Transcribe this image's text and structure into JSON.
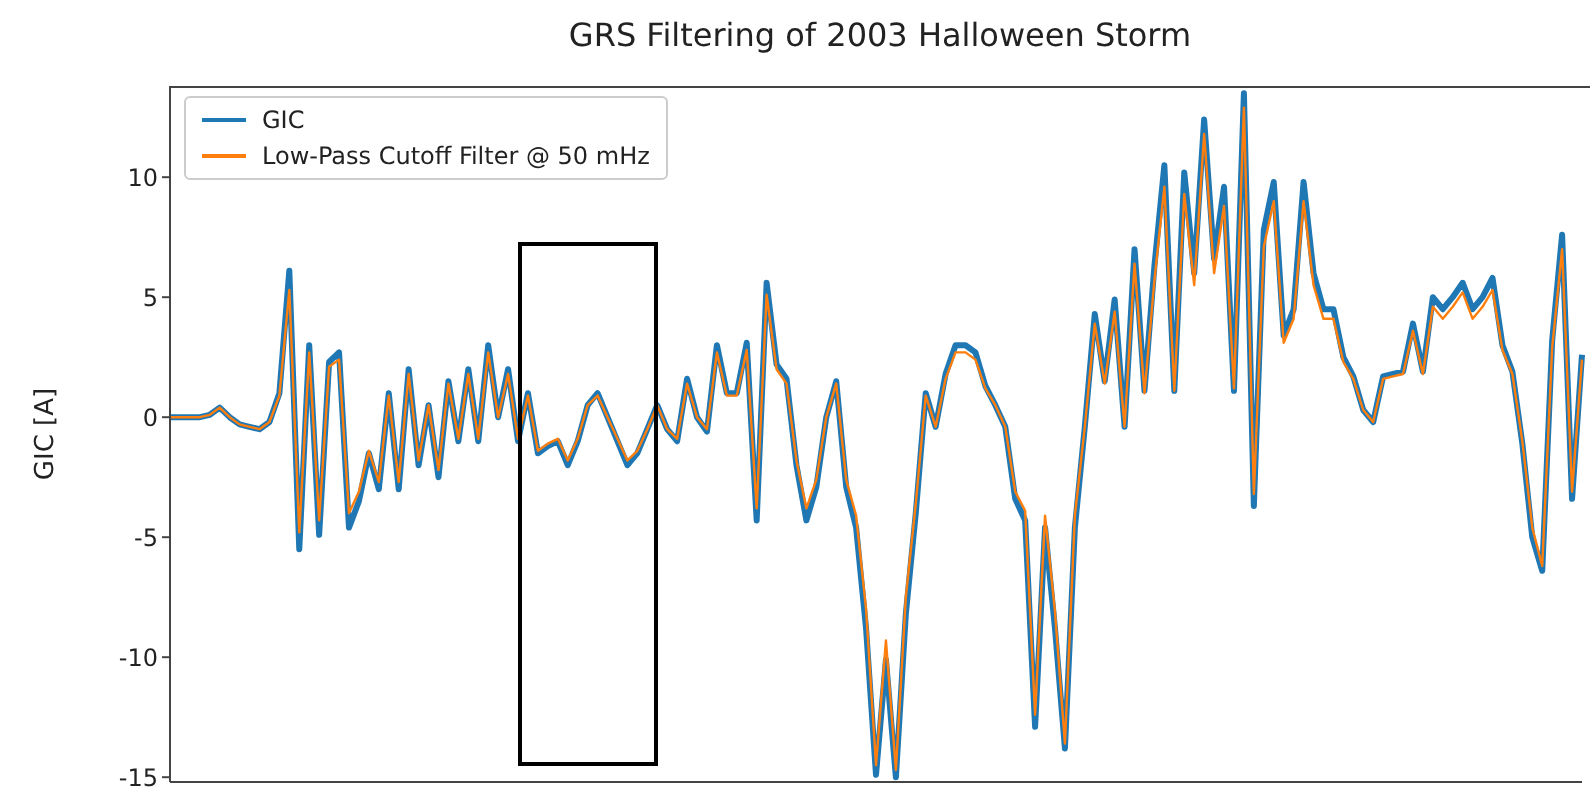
{
  "chart_data": {
    "type": "line",
    "title": "GRS Filtering of 2003 Halloween Storm",
    "ylabel": "GIC [A]",
    "categories": [
      null,
      null,
      null,
      null,
      null,
      null,
      null,
      null,
      null,
      null,
      null,
      null,
      null,
      null,
      null,
      null,
      null,
      null,
      null,
      null,
      null,
      null,
      null,
      null,
      null,
      null,
      null,
      null,
      null,
      null,
      null,
      null,
      null,
      null,
      null,
      null,
      null,
      null,
      null,
      null,
      null,
      null,
      null,
      null,
      null,
      null,
      null,
      null,
      null,
      null,
      null,
      null,
      null,
      null,
      null,
      null,
      null,
      null,
      null,
      null,
      null,
      null,
      null,
      null,
      null,
      null,
      null,
      null,
      null,
      null,
      null,
      null,
      null,
      null,
      null,
      null,
      null,
      null,
      null,
      null,
      null,
      null,
      null,
      null,
      null,
      null,
      null,
      null,
      null,
      null,
      null,
      null,
      null,
      null,
      null,
      null,
      null,
      null,
      null,
      null,
      null,
      null,
      null,
      null,
      null,
      null,
      null,
      null,
      null,
      null,
      null,
      null,
      null,
      null,
      null,
      null,
      null,
      null,
      null,
      null,
      null,
      null,
      null,
      null,
      null,
      null,
      null,
      null,
      null,
      null,
      null,
      null,
      null,
      null,
      null,
      null,
      null,
      null,
      null,
      null,
      null,
      null,
      null
    ],
    "series": [
      {
        "name": "GIC",
        "color": "#1f77b4",
        "values": [
          0,
          0,
          0,
          0,
          0.1,
          0.4,
          0,
          -0.3,
          -0.4,
          -0.5,
          -0.2,
          1,
          6.1,
          -5.5,
          3,
          -4.9,
          2.3,
          2.7,
          -4.6,
          -3.5,
          -1.5,
          -3,
          1,
          -3,
          2,
          -2,
          0.5,
          -2.5,
          1.5,
          -1,
          2,
          -1,
          3,
          0,
          2,
          -1,
          1,
          -1.5,
          -1.2,
          -1,
          -2,
          -1,
          0.5,
          1,
          0,
          -1,
          -2,
          -1.5,
          -0.5,
          0.5,
          -0.5,
          -1,
          1.6,
          0,
          -0.6,
          3,
          1,
          1,
          3.1,
          -4.3,
          5.6,
          2.2,
          1.6,
          -2,
          -4.3,
          -2.9,
          0,
          1.5,
          -2.9,
          -4.6,
          -8.8,
          -14.9,
          -10.1,
          -15,
          -8.2,
          -4,
          1,
          -0.4,
          1.8,
          3,
          3,
          2.7,
          1.3,
          0.5,
          -0.4,
          -3.4,
          -4.3,
          -12.9,
          -4.6,
          -8.8,
          -13.8,
          -4.6,
          -0.4,
          4.3,
          1.5,
          4.9,
          -0.4,
          7,
          1.1,
          6.3,
          10.5,
          1.1,
          10.2,
          6,
          12.4,
          6.6,
          9.6,
          1.1,
          13.5,
          -3.7,
          7.8,
          9.8,
          3.4,
          4.5,
          9.8,
          6,
          4.5,
          4.5,
          2.5,
          1.7,
          0.3,
          -0.2,
          1.7,
          1.8,
          1.9,
          3.9,
          1.9,
          5,
          4.5,
          5,
          5.6,
          4.5,
          5,
          5.8,
          3,
          1.9,
          -1.1,
          -5,
          -6.4,
          3.2,
          7.6,
          -3.4,
          2.6
        ]
      },
      {
        "name": "Low-Pass Cutoff Filter @ 50 mHz",
        "color": "#ff7f0e",
        "values": [
          0,
          0,
          0,
          0,
          0.1,
          0.4,
          0,
          -0.3,
          -0.4,
          -0.5,
          -0.2,
          0.9,
          5.3,
          -4.8,
          2.7,
          -4.3,
          2.1,
          2.4,
          -4,
          -3.1,
          -1.4,
          -2.7,
          0.9,
          -2.7,
          1.8,
          -1.8,
          0.5,
          -2.2,
          1.4,
          -0.9,
          1.8,
          -0.9,
          2.7,
          0,
          1.8,
          -0.9,
          0.9,
          -1.4,
          -1.1,
          -0.9,
          -1.8,
          -0.9,
          0.5,
          0.9,
          0,
          -0.9,
          -1.8,
          -1.4,
          -0.5,
          0.5,
          -0.5,
          -0.9,
          1.4,
          0,
          -0.5,
          2.7,
          0.9,
          0.9,
          2.8,
          -3.8,
          5.1,
          2,
          1.4,
          -1.8,
          -3.8,
          -2.6,
          0,
          1.4,
          -2.6,
          -4.1,
          -8,
          -14.5,
          -9.3,
          -14.7,
          -7.5,
          -3.6,
          0.9,
          -0.4,
          1.6,
          2.7,
          2.7,
          2.4,
          1.2,
          0.5,
          -0.4,
          -3.1,
          -3.9,
          -12.4,
          -4.1,
          -8.1,
          -13.6,
          -4.1,
          -0.4,
          3.9,
          1.4,
          4.4,
          -0.4,
          6.4,
          1,
          5.7,
          9.6,
          1.1,
          9.3,
          5.5,
          11.8,
          6,
          8.8,
          1.2,
          12.9,
          -3.2,
          7.1,
          9,
          3.1,
          4.1,
          9,
          5.5,
          4.1,
          4.1,
          2.3,
          1.6,
          0.3,
          -0.2,
          1.6,
          1.7,
          1.8,
          3.6,
          1.8,
          4.6,
          4.1,
          4.6,
          5.2,
          4.1,
          4.6,
          5.3,
          2.8,
          1.8,
          -1,
          -4.6,
          -6.2,
          2.9,
          7,
          -3.1,
          2.4
        ]
      }
    ],
    "ylim": [
      -15.2,
      13.8
    ],
    "yticks": [
      -15,
      -10,
      -5,
      0,
      5,
      10
    ],
    "legend": "top left",
    "grid": false
  }
}
